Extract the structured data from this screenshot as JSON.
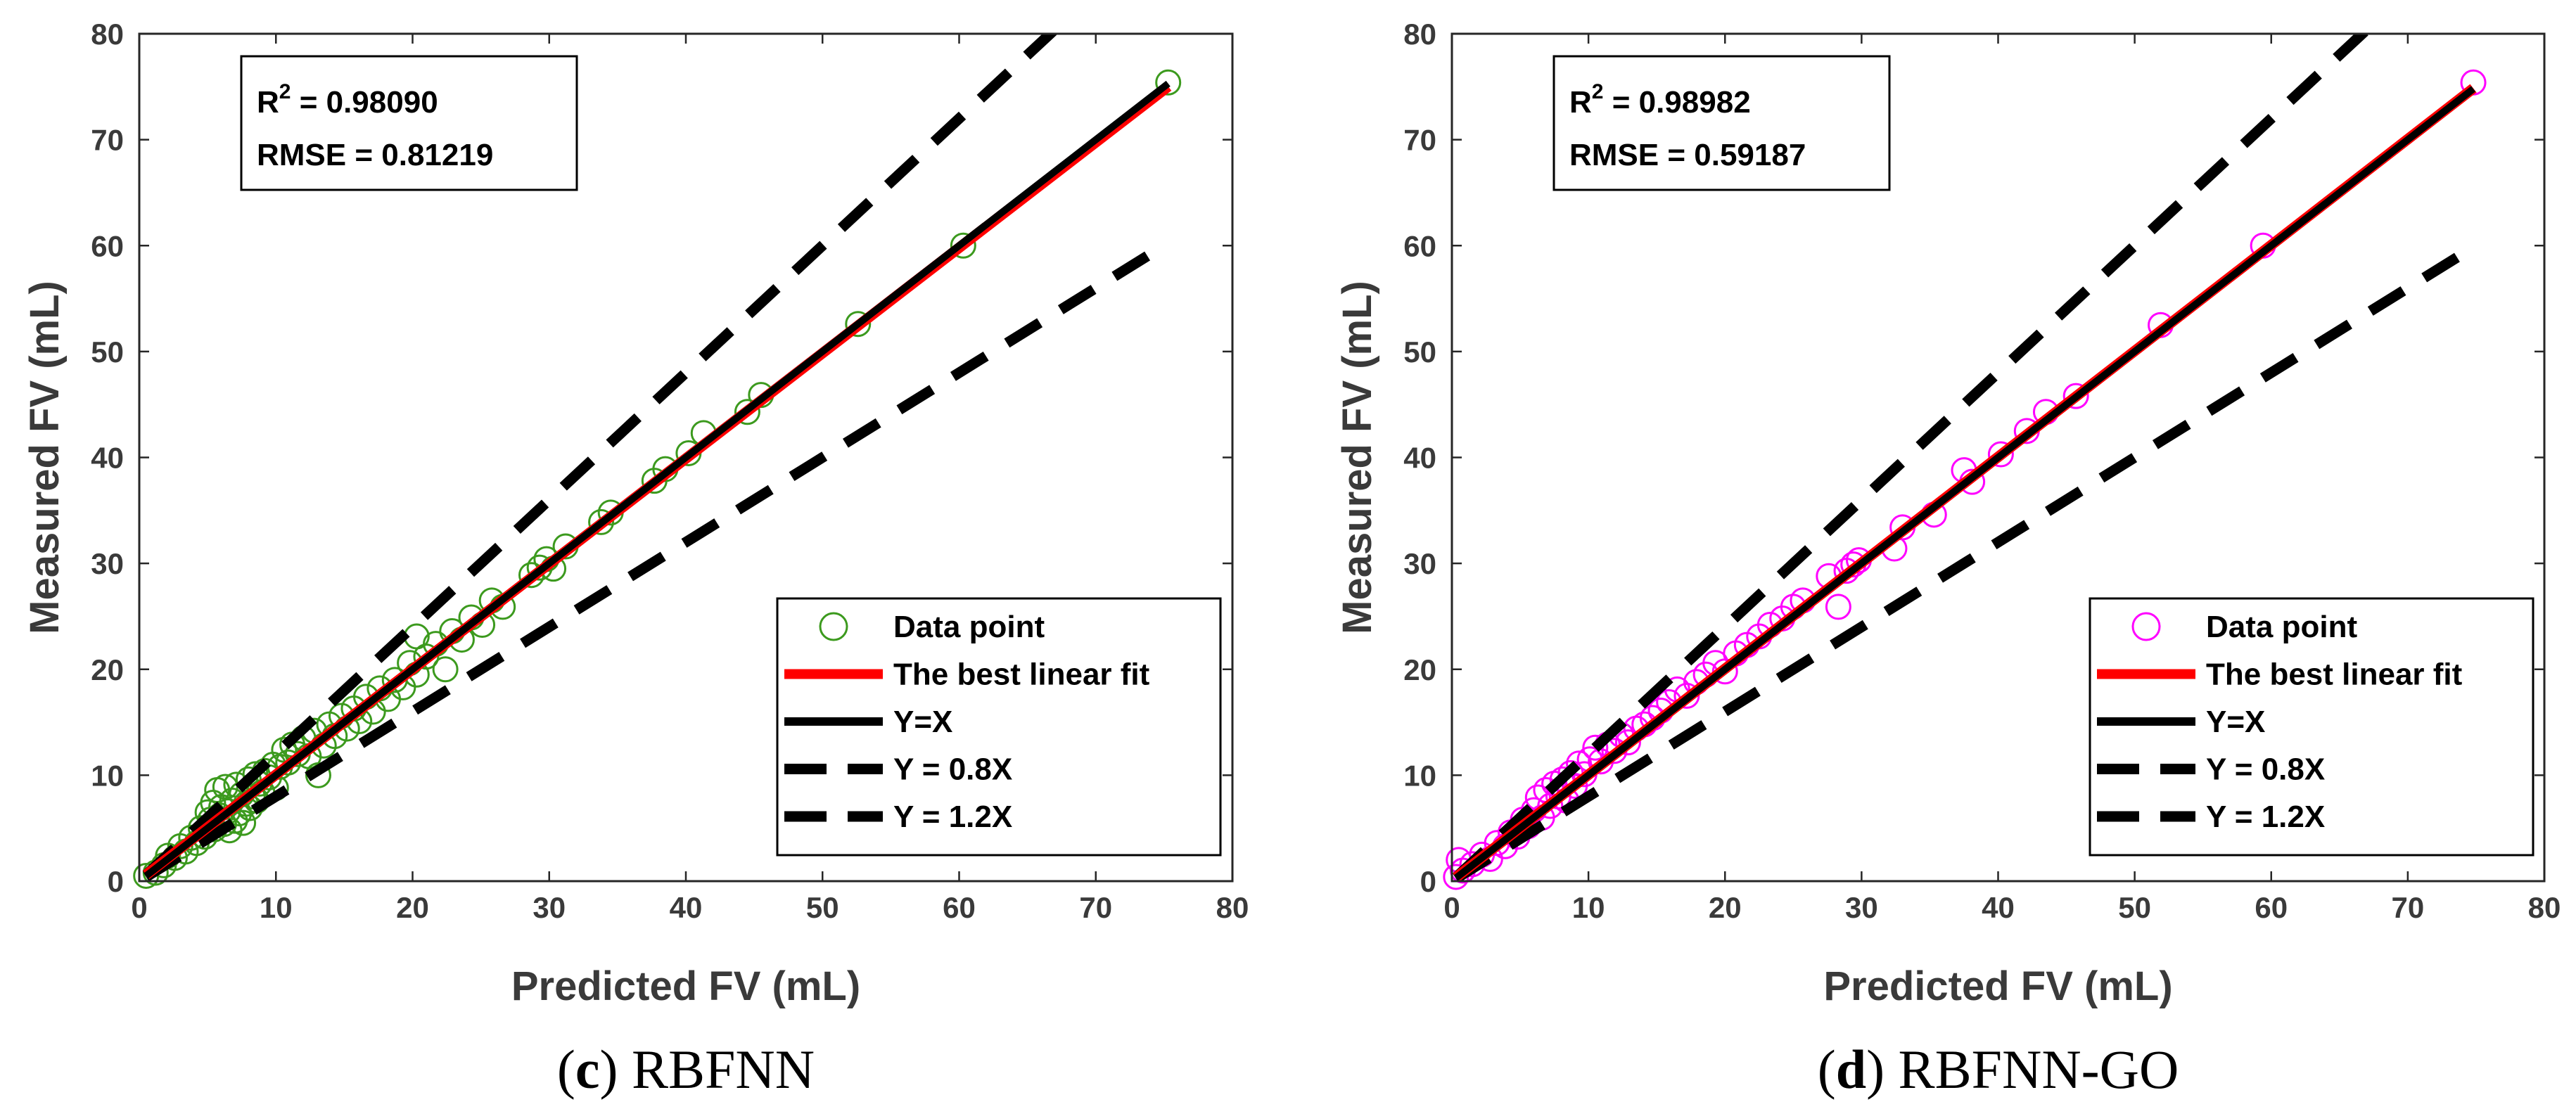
{
  "chart_data": [
    {
      "type": "scatter",
      "caption_letter": "c",
      "caption_name": "RBFNN",
      "xlabel": "Predicted FV (mL)",
      "ylabel": "Measured FV (mL)",
      "xlim": [
        0,
        80
      ],
      "ylim": [
        0,
        80
      ],
      "xticks": [
        "0",
        "10",
        "20",
        "30",
        "40",
        "50",
        "60",
        "70",
        "80"
      ],
      "yticks": [
        "0",
        "10",
        "20",
        "30",
        "40",
        "50",
        "60",
        "70",
        "80"
      ],
      "r2_label": "R",
      "r2_sup": "2",
      "r2_value": " = 0.98090",
      "rmse_text": "RMSE = 0.81219",
      "marker_color": "#3c9a1e",
      "fit_color": "#ff0000",
      "fit": {
        "slope": 0.995,
        "intercept": 0.1
      },
      "legend": [
        "Data point",
        "The best linear fit",
        "Y=X",
        "Y = 0.8X",
        "Y = 1.2X"
      ],
      "points": [
        [
          0.5,
          0.5
        ],
        [
          1.2,
          0.8
        ],
        [
          1.8,
          1.5
        ],
        [
          2.1,
          2.4
        ],
        [
          2.6,
          2.2
        ],
        [
          3.0,
          3.3
        ],
        [
          3.4,
          2.8
        ],
        [
          3.8,
          4.1
        ],
        [
          4.2,
          3.6
        ],
        [
          4.5,
          5.0
        ],
        [
          4.8,
          4.2
        ],
        [
          5.0,
          6.5
        ],
        [
          5.2,
          5.8
        ],
        [
          5.4,
          7.4
        ],
        [
          5.5,
          4.9
        ],
        [
          5.7,
          8.6
        ],
        [
          5.9,
          6.2
        ],
        [
          6.0,
          7.0
        ],
        [
          6.2,
          5.4
        ],
        [
          6.3,
          8.9
        ],
        [
          6.5,
          6.6
        ],
        [
          6.6,
          4.8
        ],
        [
          6.8,
          7.6
        ],
        [
          7.0,
          5.7
        ],
        [
          7.1,
          9.1
        ],
        [
          7.3,
          6.4
        ],
        [
          7.5,
          8.2
        ],
        [
          7.6,
          5.5
        ],
        [
          7.8,
          7.3
        ],
        [
          8.0,
          9.6
        ],
        [
          8.1,
          6.9
        ],
        [
          8.3,
          8.0
        ],
        [
          8.5,
          10.1
        ],
        [
          8.6,
          7.6
        ],
        [
          8.8,
          9.2
        ],
        [
          9.0,
          8.4
        ],
        [
          9.2,
          10.4
        ],
        [
          9.5,
          9.8
        ],
        [
          9.8,
          11.0
        ],
        [
          10.0,
          8.8
        ],
        [
          10.3,
          10.8
        ],
        [
          10.6,
          12.4
        ],
        [
          10.9,
          11.2
        ],
        [
          11.2,
          12.9
        ],
        [
          11.6,
          12.0
        ],
        [
          12.0,
          13.5
        ],
        [
          12.4,
          11.8
        ],
        [
          12.8,
          14.2
        ],
        [
          13.1,
          10.0
        ],
        [
          13.5,
          12.8
        ],
        [
          13.9,
          14.8
        ],
        [
          14.3,
          13.7
        ],
        [
          14.8,
          15.6
        ],
        [
          15.2,
          14.4
        ],
        [
          15.7,
          16.3
        ],
        [
          16.1,
          15.1
        ],
        [
          16.6,
          17.4
        ],
        [
          17.1,
          16.0
        ],
        [
          17.6,
          18.2
        ],
        [
          18.2,
          17.2
        ],
        [
          18.7,
          19.0
        ],
        [
          19.3,
          18.3
        ],
        [
          19.8,
          20.6
        ],
        [
          20.3,
          19.5
        ],
        [
          20.3,
          23.1
        ],
        [
          21.0,
          21.2
        ],
        [
          21.7,
          22.4
        ],
        [
          22.4,
          20.0
        ],
        [
          22.9,
          23.6
        ],
        [
          23.6,
          22.8
        ],
        [
          24.3,
          24.9
        ],
        [
          25.1,
          24.2
        ],
        [
          25.8,
          26.5
        ],
        [
          26.6,
          25.9
        ],
        [
          28.7,
          28.9
        ],
        [
          29.3,
          29.6
        ],
        [
          29.8,
          30.4
        ],
        [
          30.3,
          29.5
        ],
        [
          31.2,
          31.6
        ],
        [
          33.8,
          33.9
        ],
        [
          34.5,
          34.8
        ],
        [
          37.7,
          37.8
        ],
        [
          38.5,
          38.9
        ],
        [
          40.2,
          40.4
        ],
        [
          41.3,
          42.3
        ],
        [
          44.5,
          44.3
        ],
        [
          45.5,
          45.9
        ],
        [
          52.6,
          52.6
        ],
        [
          60.3,
          60.0
        ],
        [
          75.3,
          75.4
        ]
      ]
    },
    {
      "type": "scatter",
      "caption_letter": "d",
      "caption_name": "RBFNN-GO",
      "xlabel": "Predicted FV (mL)",
      "ylabel": "Measured FV (mL)",
      "xlim": [
        0,
        80
      ],
      "ylim": [
        0,
        80
      ],
      "xticks": [
        "0",
        "10",
        "20",
        "30",
        "40",
        "50",
        "60",
        "70",
        "80"
      ],
      "yticks": [
        "0",
        "10",
        "20",
        "30",
        "40",
        "50",
        "60",
        "70",
        "80"
      ],
      "r2_label": "R",
      "r2_sup": "2",
      "r2_value": " = 0.98982",
      "rmse_text": "RMSE = 0.59187",
      "marker_color": "#ff00ff",
      "fit_color": "#ff0000",
      "fit": {
        "slope": 1.0,
        "intercept": 0.05
      },
      "legend": [
        "Data point",
        "The best linear fit",
        "Y=X",
        "Y = 0.8X",
        "Y = 1.2X"
      ],
      "points": [
        [
          0.3,
          0.4
        ],
        [
          0.5,
          2.0
        ],
        [
          0.8,
          1.0
        ],
        [
          1.5,
          1.6
        ],
        [
          2.2,
          2.5
        ],
        [
          2.8,
          2.1
        ],
        [
          3.3,
          3.6
        ],
        [
          3.9,
          3.3
        ],
        [
          4.3,
          4.6
        ],
        [
          4.8,
          4.2
        ],
        [
          5.2,
          5.8
        ],
        [
          5.6,
          5.2
        ],
        [
          6.0,
          6.7
        ],
        [
          6.3,
          7.9
        ],
        [
          6.6,
          6.0
        ],
        [
          6.9,
          8.6
        ],
        [
          7.2,
          7.1
        ],
        [
          7.5,
          9.2
        ],
        [
          7.8,
          8.0
        ],
        [
          8.1,
          9.6
        ],
        [
          8.4,
          7.6
        ],
        [
          8.7,
          10.2
        ],
        [
          9.0,
          9.0
        ],
        [
          9.3,
          11.1
        ],
        [
          9.7,
          10.1
        ],
        [
          10.1,
          11.5
        ],
        [
          10.5,
          12.6
        ],
        [
          10.9,
          11.3
        ],
        [
          11.4,
          12.9
        ],
        [
          11.9,
          12.3
        ],
        [
          12.4,
          13.8
        ],
        [
          12.9,
          13.1
        ],
        [
          13.5,
          14.4
        ],
        [
          14.1,
          14.8
        ],
        [
          14.7,
          15.4
        ],
        [
          15.3,
          16.1
        ],
        [
          15.9,
          16.9
        ],
        [
          16.5,
          18.1
        ],
        [
          17.2,
          17.5
        ],
        [
          17.9,
          18.8
        ],
        [
          18.6,
          19.5
        ],
        [
          19.3,
          20.6
        ],
        [
          20.0,
          19.8
        ],
        [
          20.8,
          21.5
        ],
        [
          21.6,
          22.3
        ],
        [
          22.5,
          23.1
        ],
        [
          23.3,
          24.2
        ],
        [
          24.2,
          24.8
        ],
        [
          25.0,
          25.9
        ],
        [
          25.7,
          26.5
        ],
        [
          27.6,
          28.8
        ],
        [
          28.3,
          25.9
        ],
        [
          28.9,
          29.3
        ],
        [
          29.4,
          29.9
        ],
        [
          29.8,
          30.3
        ],
        [
          32.4,
          31.4
        ],
        [
          33.0,
          33.4
        ],
        [
          35.3,
          34.6
        ],
        [
          37.5,
          38.8
        ],
        [
          38.1,
          37.7
        ],
        [
          40.2,
          40.3
        ],
        [
          42.1,
          42.5
        ],
        [
          43.5,
          44.3
        ],
        [
          45.7,
          45.8
        ],
        [
          51.9,
          52.5
        ],
        [
          59.4,
          60.0
        ],
        [
          74.8,
          75.4
        ]
      ]
    }
  ]
}
